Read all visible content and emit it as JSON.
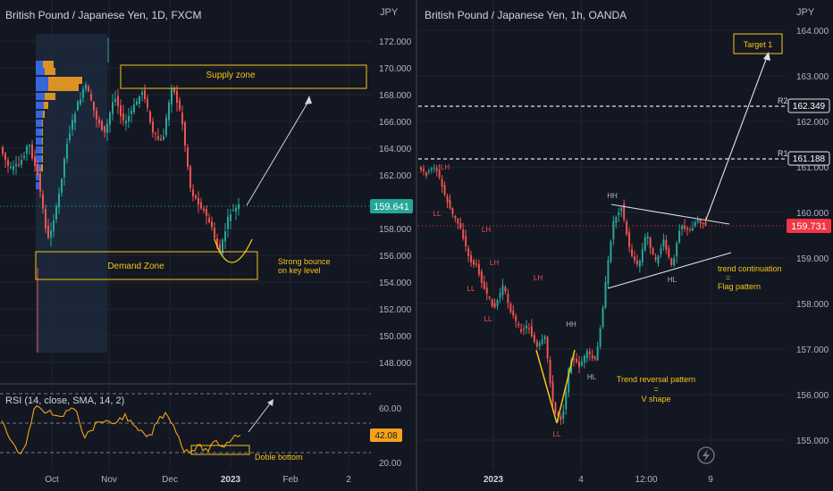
{
  "colors": {
    "bg": "#131722",
    "up": "#26a69a",
    "down": "#ef5350",
    "yellow": "#f5c518",
    "axis_text": "#b2b5be",
    "rsi": "#f7a21b",
    "last_left": "#26a69a",
    "last_right": "#f23645"
  },
  "left_panel": {
    "title": "British Pound / Japanese Yen, 1D, FXCM",
    "unit": "JPY",
    "supply_label": "Supply zone",
    "demand_label": "Demand Zone",
    "bounce_label": [
      "Strong bounce",
      "on key level"
    ],
    "last_price": "159.641",
    "price_ticks": [
      "172.000",
      "170.000",
      "168.000",
      "166.000",
      "164.000",
      "162.000",
      "158.000",
      "156.000",
      "154.000",
      "152.000",
      "150.000",
      "148.000"
    ],
    "time_ticks": [
      "Oct",
      "Nov",
      "Dec",
      "2023",
      "Feb",
      "2"
    ]
  },
  "rsi_panel": {
    "label": "RSI (14, close, SMA, 14, 2)",
    "ticks": [
      "60.00",
      "20.00"
    ],
    "last_value": "42.08",
    "annotation": "Doble bottom"
  },
  "right_panel": {
    "title": "British Pound / Japanese Yen, 1h, OANDA",
    "unit": "JPY",
    "price_ticks": [
      "164.000",
      "163.000",
      "162.000",
      "161.000",
      "160.000",
      "159.000",
      "158.000",
      "157.000",
      "156.000",
      "155.000"
    ],
    "time_ticks": [
      "2023",
      "4",
      "12:00",
      "9"
    ],
    "r1_label": "R1",
    "r1_value": "161.188",
    "r2_label": "R2",
    "r2_value": "162.349",
    "last_price": "159.731",
    "target_label": "Target 1",
    "flag_text": [
      "trend continuation",
      "=",
      "Flag pattern"
    ],
    "v_text": [
      "Trend reversal pattern",
      "=",
      "V shape"
    ],
    "swing_labels": [
      {
        "text": "LH",
        "kind": "high"
      },
      {
        "text": "LL",
        "kind": "low"
      },
      {
        "text": "LH",
        "kind": "high"
      },
      {
        "text": "LL",
        "kind": "low"
      },
      {
        "text": "LH",
        "kind": "high"
      },
      {
        "text": "LL",
        "kind": "low"
      },
      {
        "text": "LH",
        "kind": "high"
      },
      {
        "text": "LL",
        "kind": "low"
      },
      {
        "text": "HH",
        "kind": "high"
      },
      {
        "text": "HL",
        "kind": "low"
      },
      {
        "text": "HH",
        "kind": "high"
      },
      {
        "text": "HL",
        "kind": "low"
      }
    ]
  },
  "chart_data": [
    {
      "type": "candlestick",
      "title": "British Pound / Japanese Yen, 1D, FXCM",
      "ylim": [
        147,
        173
      ],
      "xlabels": [
        "Oct",
        "Nov",
        "Dec",
        "2023",
        "Feb",
        "2"
      ],
      "last_price": 159.641,
      "key_points": [
        {
          "x": "late Sep",
          "close": 149.0
        },
        {
          "x": "early Oct",
          "close": 162.0
        },
        {
          "x": "mid Oct",
          "close": 166.0
        },
        {
          "x": "Nov",
          "close": 171.5
        },
        {
          "x": "mid Nov",
          "close": 166.0
        },
        {
          "x": "early Dec",
          "close": 168.5
        },
        {
          "x": "late Dec",
          "close": 161.0
        },
        {
          "x": "early Jan",
          "close": 156.0
        },
        {
          "x": "Jan",
          "close": 159.641
        }
      ],
      "zones": [
        {
          "label": "Supply zone",
          "from": 168.3,
          "to": 170.1
        },
        {
          "label": "Demand Zone",
          "from": 154.1,
          "to": 157.0
        }
      ]
    },
    {
      "type": "line",
      "title": "RSI (14, close, SMA, 14, 2)",
      "ylim": [
        15,
        75
      ],
      "last_value": 42.08,
      "annotation": "Doble bottom"
    },
    {
      "type": "candlestick",
      "title": "British Pound / Japanese Yen, 1h, OANDA",
      "ylim": [
        154.8,
        164.2
      ],
      "xlabels": [
        "2023",
        "4",
        "12:00",
        "9"
      ],
      "last_price": 159.731,
      "levels": [
        {
          "label": "R1",
          "value": 161.188
        },
        {
          "label": "R2",
          "value": 162.349
        }
      ],
      "key_points": [
        {
          "label": "LH",
          "value": 161.2
        },
        {
          "label": "LL",
          "value": 159.9
        },
        {
          "label": "LH",
          "value": 159.5
        },
        {
          "label": "LL",
          "value": 158.3
        },
        {
          "label": "LH",
          "value": 158.7
        },
        {
          "label": "LL",
          "value": 157.9
        },
        {
          "label": "LH",
          "value": 158.0
        },
        {
          "label": "LL",
          "value": 155.5
        },
        {
          "label": "HH",
          "value": 156.8
        },
        {
          "label": "HL",
          "value": 156.2
        },
        {
          "label": "HH",
          "value": 160.1
        },
        {
          "label": "HL",
          "value": 158.9
        }
      ],
      "last_close": 159.731
    }
  ]
}
